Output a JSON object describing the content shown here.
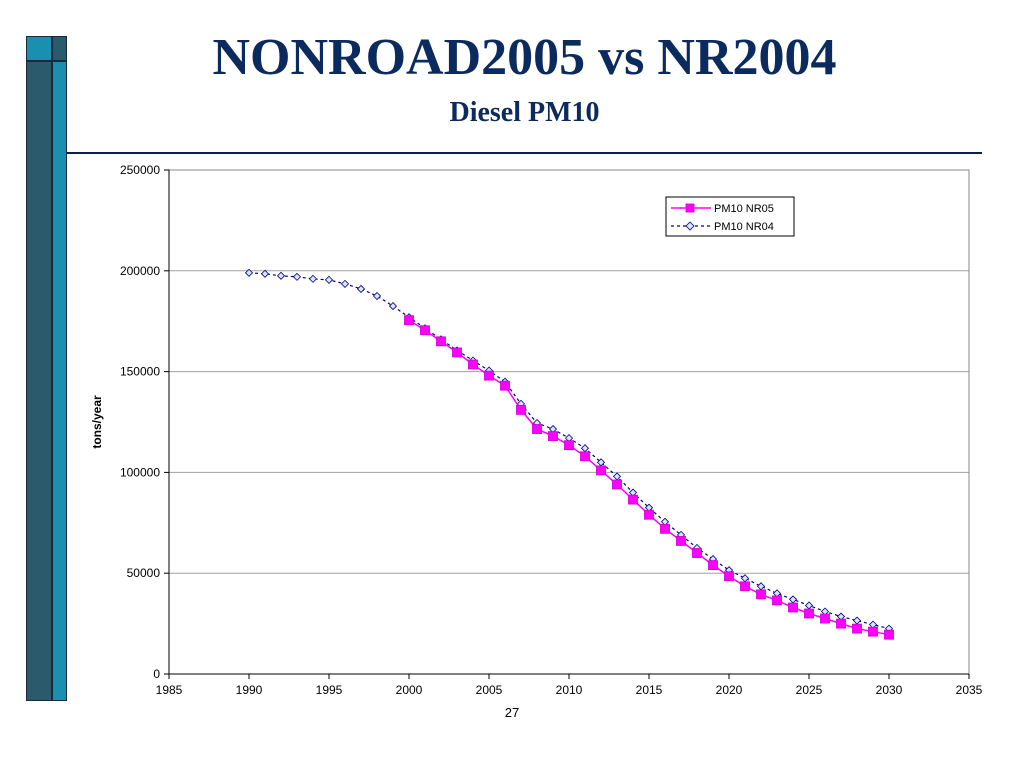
{
  "slide": {
    "title": "NONROAD2005 vs NR2004",
    "subtitle": "Diesel PM10",
    "page_number": "27"
  },
  "colors": {
    "title": "#0b2a5e",
    "nr05_series": "#ff00ff",
    "nr04_series": "#000080",
    "sidebar_light": "#1a8fb0",
    "sidebar_dark": "#2a5a6c"
  },
  "chart_data": {
    "type": "line",
    "title": "",
    "xlabel": "",
    "ylabel": "tons/year",
    "xlim": [
      1985,
      2035
    ],
    "ylim": [
      0,
      250000
    ],
    "x_ticks": [
      1985,
      1990,
      1995,
      2000,
      2005,
      2010,
      2015,
      2020,
      2025,
      2030,
      2035
    ],
    "y_ticks": [
      0,
      50000,
      100000,
      150000,
      200000,
      250000
    ],
    "grid": "horizontal",
    "legend_position": "top-right",
    "series": [
      {
        "name": "PM10 NR05",
        "color": "#ff00ff",
        "line_style": "solid",
        "marker": "square",
        "x": [
          2000,
          2001,
          2002,
          2003,
          2004,
          2005,
          2006,
          2007,
          2008,
          2009,
          2010,
          2011,
          2012,
          2013,
          2014,
          2015,
          2016,
          2017,
          2018,
          2019,
          2020,
          2021,
          2022,
          2023,
          2024,
          2025,
          2026,
          2027,
          2028,
          2029,
          2030
        ],
        "y": [
          175500,
          170500,
          165000,
          159500,
          153500,
          148000,
          143000,
          131000,
          121500,
          118000,
          113500,
          108000,
          101000,
          94000,
          86500,
          79000,
          72000,
          66000,
          60000,
          54000,
          48500,
          43500,
          39500,
          36500,
          33000,
          30000,
          27500,
          25000,
          22500,
          21000,
          19500
        ]
      },
      {
        "name": "PM10 NR04",
        "color": "#000080",
        "line_style": "dashed",
        "marker": "diamond",
        "x": [
          1990,
          1991,
          1992,
          1993,
          1994,
          1995,
          1996,
          1997,
          1998,
          1999,
          2000,
          2001,
          2002,
          2003,
          2004,
          2005,
          2006,
          2007,
          2008,
          2009,
          2010,
          2011,
          2012,
          2013,
          2014,
          2015,
          2016,
          2017,
          2018,
          2019,
          2020,
          2021,
          2022,
          2023,
          2024,
          2025,
          2026,
          2027,
          2028,
          2029,
          2030
        ],
        "y": [
          199000,
          198500,
          197500,
          197000,
          196000,
          195500,
          193500,
          191000,
          187500,
          182500,
          177000,
          171500,
          166000,
          160500,
          155500,
          150500,
          145000,
          134000,
          124500,
          121500,
          117000,
          112000,
          105000,
          98000,
          90000,
          82500,
          75500,
          69000,
          62500,
          57000,
          51500,
          47500,
          43500,
          40000,
          37000,
          34000,
          31000,
          28500,
          26500,
          24500,
          22500
        ]
      }
    ]
  }
}
